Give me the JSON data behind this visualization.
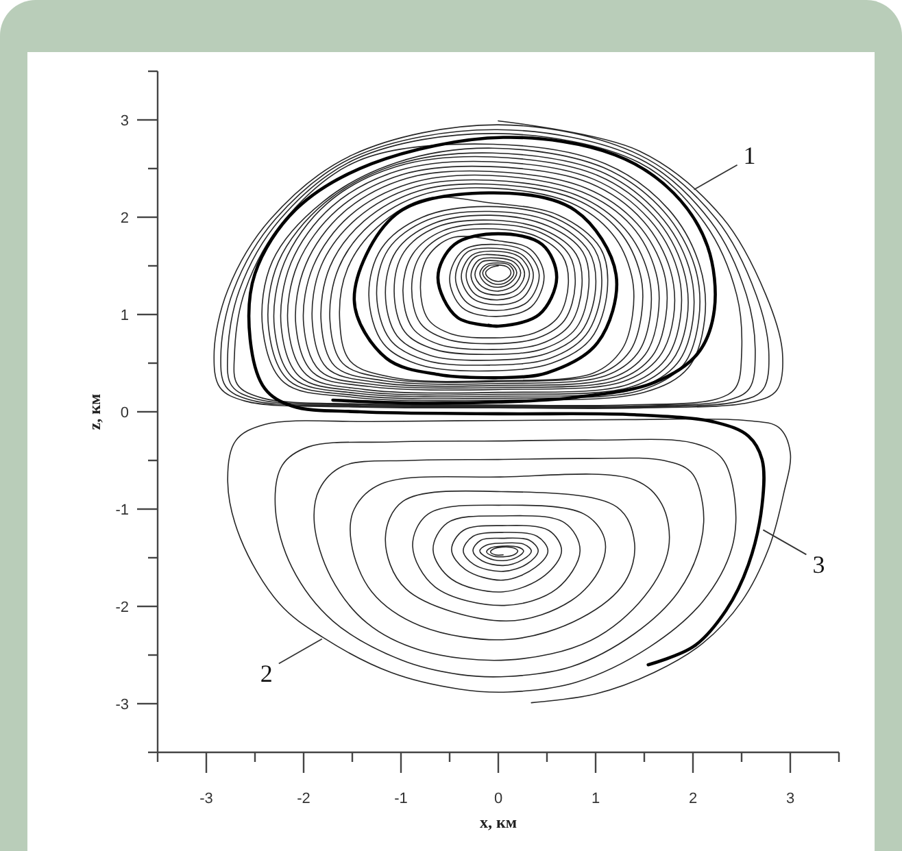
{
  "chart_data": {
    "type": "line",
    "xlabel": "x, км",
    "ylabel": "z, км",
    "xlim": [
      -3.5,
      3.5
    ],
    "ylim": [
      -3.5,
      3.5
    ],
    "xticks": [
      {
        "value": -3.5,
        "label": null
      },
      -3,
      {
        "value": -2.5,
        "label": null
      },
      -2,
      {
        "value": -1.5,
        "label": null
      },
      -1,
      {
        "value": -0.5,
        "label": null
      },
      0,
      {
        "value": 0.5,
        "label": null
      },
      1,
      {
        "value": 1.5,
        "label": null
      },
      2,
      {
        "value": 2.5,
        "label": null
      },
      3,
      {
        "value": 3.5,
        "label": null
      }
    ],
    "yticks": [
      {
        "value": -3.5,
        "label": null
      },
      -3,
      {
        "value": -2.5,
        "label": null
      },
      -2,
      {
        "value": -1.5,
        "label": null
      },
      -1,
      {
        "value": -0.5,
        "label": null
      },
      0,
      {
        "value": 0.5,
        "label": null
      },
      1,
      {
        "value": 1.5,
        "label": null
      },
      2,
      {
        "value": 2.5,
        "label": null
      },
      3,
      {
        "value": 3.5,
        "label": null
      }
    ],
    "series": [
      {
        "color": "#262626",
        "x": [
          0,
          1.45,
          2.3,
          2.75,
          2.92,
          2.86,
          2.6,
          1.5,
          0,
          -1.5,
          -2.6,
          -2.86,
          -2.92,
          -2.78,
          -2.34,
          -1.5,
          0,
          1.45,
          2.24,
          2.65,
          2.78,
          2.72,
          2.48,
          1.45,
          0,
          -1.45,
          -2.54,
          -2.8,
          -2.85,
          -2.72,
          -2.29,
          -1.48,
          -0.01,
          1.45,
          2.18,
          2.55,
          2.64,
          2.58,
          2.36,
          1.4,
          0,
          -1.4,
          -2.48,
          -2.74,
          -2.78,
          -2.66,
          -2.24,
          -1.46,
          -0.02,
          1.45,
          2.12,
          2.45,
          2.5,
          2.44,
          2.24,
          1.3,
          0,
          -1.4,
          -2.42,
          -2.68,
          -2.71,
          -2.6,
          -2.19,
          -1.44,
          -0.05,
          1.1,
          1.75,
          2.07,
          2.12,
          1.95,
          1.5,
          0,
          -1.5,
          -2.2,
          -2.42,
          -2.32,
          -1.8,
          -1.05,
          -0.06,
          1.08,
          1.7,
          2.02,
          2.06,
          1.9,
          1.46,
          0,
          -1.48,
          -2.15,
          -2.36,
          -2.26,
          -1.78,
          -1.05,
          -0.06,
          1.05,
          1.65,
          1.96,
          2.0,
          1.84,
          1.42,
          0,
          -1.45,
          -2.1,
          -2.3,
          -2.2,
          -1.76,
          -1.05,
          -0.07,
          1.02,
          1.6,
          1.9,
          1.94,
          1.78,
          1.38,
          0,
          -1.42,
          -2.04,
          -2.23,
          -2.13,
          -1.71,
          -1.02,
          -0.07,
          0.98,
          1.55,
          1.84,
          1.87,
          1.72,
          1.33,
          0,
          -1.38,
          -1.97,
          -2.16,
          -2.06,
          -1.65,
          -0.98,
          -0.08,
          0.94,
          1.49,
          1.77,
          1.8,
          1.65,
          1.28,
          0,
          -1.33,
          -1.9,
          -2.08,
          -1.98,
          -1.59,
          -0.94,
          -0.08,
          0.9,
          1.43,
          1.7,
          1.72,
          1.58,
          1.23,
          0,
          -1.28,
          -1.83,
          -2.0,
          -1.9,
          -1.52,
          -0.9,
          -0.09,
          0.86,
          1.37,
          1.62,
          1.64,
          1.51,
          1.17,
          0,
          -1.23,
          -1.76,
          -1.91,
          -1.82,
          -1.45,
          -0.86,
          -0.09,
          0.82,
          1.3,
          1.54,
          1.56,
          1.43,
          1.1,
          0,
          -1.18,
          -1.68,
          -1.82,
          -1.73,
          -1.38,
          -0.82,
          -0.1,
          0.78,
          1.24,
          1.46,
          1.47,
          1.35,
          1.04,
          -0.03,
          -1.13,
          -1.6,
          -1.73,
          -1.64,
          -1.31,
          -0.78,
          -0.1,
          0.74,
          1.17,
          1.37,
          1.38,
          1.27,
          0.98,
          -0.05,
          -1.07,
          -1.52,
          -1.63,
          -1.55,
          -1.24,
          -0.74,
          -0.1,
          0.62,
          1.05,
          1.12,
          0.95,
          0.55,
          -0.1,
          -0.8,
          -1.18,
          -1.33,
          -1.2,
          -0.78,
          -0.1,
          0.59,
          0.99,
          1.06,
          0.9,
          0.53,
          -0.09,
          -0.75,
          -1.11,
          -1.25,
          -1.13,
          -0.73,
          -0.09,
          0.55,
          0.93,
          1.0,
          0.85,
          0.5,
          -0.08,
          -0.7,
          -1.04,
          -1.16,
          -1.05,
          -0.68,
          -0.08,
          0.51,
          0.87,
          0.93,
          0.8,
          0.47,
          -0.07,
          -0.65,
          -0.96,
          -1.07,
          -0.97,
          -0.63,
          -0.07,
          0.47,
          0.8,
          0.86,
          0.74,
          0.44,
          -0.06,
          -0.6,
          -0.88,
          -0.98,
          -0.88,
          -0.57,
          -0.06,
          0.44,
          0.73,
          0.79,
          0.68,
          0.41,
          -0.05,
          -0.54,
          -0.8,
          -0.89,
          -0.8,
          -0.52,
          -0.05,
          0.4,
          0.66,
          0.72,
          0.62,
          0.37,
          -0.04,
          -0.48,
          -0.72,
          -0.8,
          -0.72,
          -0.47,
          -0.02,
          0.33,
          0.47,
          0.34,
          -0.02,
          -0.37,
          -0.5,
          -0.36,
          -0.02,
          0.29,
          0.42,
          0.3,
          -0.02,
          -0.32,
          -0.44,
          -0.32,
          -0.01,
          0.25,
          0.36,
          0.25,
          -0.01,
          -0.27,
          -0.38,
          -0.27,
          -0.01,
          0.22,
          0.32,
          0.22,
          -0.01,
          -0.24,
          -0.33,
          -0.24,
          0,
          0.19,
          0.27,
          0.19,
          0,
          -0.2,
          -0.28,
          -0.2,
          0,
          0.16,
          0.23,
          0.16,
          0,
          -0.17,
          -0.24,
          -0.17,
          0,
          0.13,
          0.19,
          0.13,
          0,
          -0.13,
          -0.19,
          -0.13,
          0,
          0.11,
          0.16,
          0.11,
          0,
          -0.11,
          -0.16,
          -0.1,
          0,
          0.09,
          0.13,
          0.09,
          0,
          -0.09,
          -0.13,
          -0.08,
          0
        ],
        "values": [
          2.99,
          2.68,
          2.0,
          1.2,
          0.6,
          0.22,
          0.1,
          0.04,
          0.04,
          0.05,
          0.11,
          0.25,
          0.6,
          1.25,
          1.98,
          2.64,
          2.95,
          2.64,
          1.98,
          1.2,
          0.6,
          0.23,
          0.11,
          0.05,
          0.05,
          0.06,
          0.12,
          0.26,
          0.6,
          1.25,
          1.98,
          2.62,
          2.9,
          2.6,
          1.96,
          1.2,
          0.6,
          0.24,
          0.12,
          0.06,
          0.06,
          0.07,
          0.13,
          0.27,
          0.6,
          1.25,
          1.98,
          2.6,
          2.86,
          2.56,
          1.94,
          1.2,
          0.6,
          0.25,
          0.13,
          0.07,
          0.07,
          0.08,
          0.14,
          0.28,
          0.6,
          1.25,
          1.98,
          2.58,
          2.75,
          2.55,
          2.08,
          1.5,
          0.95,
          0.45,
          0.2,
          0.12,
          0.15,
          0.3,
          0.85,
          1.55,
          2.16,
          2.56,
          2.71,
          2.51,
          2.06,
          1.49,
          0.95,
          0.48,
          0.22,
          0.14,
          0.17,
          0.32,
          0.86,
          1.54,
          2.15,
          2.54,
          2.66,
          2.47,
          2.03,
          1.48,
          0.95,
          0.5,
          0.24,
          0.16,
          0.19,
          0.34,
          0.86,
          1.53,
          2.14,
          2.52,
          2.62,
          2.43,
          2.01,
          1.47,
          0.96,
          0.52,
          0.26,
          0.18,
          0.21,
          0.36,
          0.87,
          1.53,
          2.11,
          2.48,
          2.57,
          2.39,
          1.98,
          1.46,
          0.96,
          0.54,
          0.28,
          0.2,
          0.23,
          0.38,
          0.88,
          1.52,
          2.08,
          2.44,
          2.52,
          2.35,
          1.96,
          1.45,
          0.97,
          0.56,
          0.31,
          0.23,
          0.26,
          0.4,
          0.89,
          1.51,
          2.05,
          2.4,
          2.47,
          2.3,
          1.93,
          1.44,
          0.97,
          0.57,
          0.33,
          0.25,
          0.28,
          0.42,
          0.9,
          1.5,
          2.02,
          2.35,
          2.43,
          2.26,
          1.91,
          1.43,
          0.98,
          0.59,
          0.35,
          0.27,
          0.3,
          0.45,
          0.91,
          1.5,
          1.99,
          2.31,
          2.38,
          2.22,
          1.88,
          1.42,
          0.98,
          0.6,
          0.37,
          0.29,
          0.32,
          0.47,
          0.92,
          1.49,
          1.96,
          2.27,
          2.34,
          2.19,
          1.86,
          1.41,
          0.99,
          0.62,
          0.39,
          0.31,
          0.34,
          0.5,
          0.94,
          1.48,
          1.93,
          2.23,
          2.3,
          2.15,
          1.83,
          1.4,
          1.0,
          0.64,
          0.4,
          0.32,
          0.35,
          0.52,
          0.95,
          1.47,
          1.9,
          2.19,
          2.15,
          2.02,
          1.68,
          1.25,
          0.75,
          0.5,
          0.42,
          0.48,
          0.7,
          1.2,
          1.68,
          2.0,
          2.11,
          1.99,
          1.67,
          1.26,
          0.79,
          0.55,
          0.48,
          0.53,
          0.74,
          1.21,
          1.67,
          1.97,
          2.06,
          1.95,
          1.65,
          1.27,
          0.82,
          0.6,
          0.53,
          0.58,
          0.78,
          1.22,
          1.65,
          1.93,
          2.02,
          1.91,
          1.64,
          1.29,
          0.86,
          0.65,
          0.59,
          0.64,
          0.82,
          1.24,
          1.64,
          1.9,
          1.97,
          1.87,
          1.62,
          1.3,
          0.9,
          0.7,
          0.64,
          0.69,
          0.86,
          1.25,
          1.62,
          1.86,
          1.93,
          1.84,
          1.61,
          1.31,
          0.94,
          0.76,
          0.7,
          0.75,
          0.91,
          1.27,
          1.61,
          1.83,
          1.88,
          1.8,
          1.6,
          1.32,
          0.98,
          0.81,
          0.76,
          0.8,
          0.95,
          1.28,
          1.6,
          1.79,
          1.76,
          1.67,
          1.4,
          1.08,
          0.98,
          1.07,
          1.37,
          1.66,
          1.72,
          1.64,
          1.41,
          1.13,
          1.04,
          1.12,
          1.38,
          1.64,
          1.68,
          1.61,
          1.41,
          1.17,
          1.1,
          1.17,
          1.39,
          1.61,
          1.65,
          1.59,
          1.42,
          1.22,
          1.15,
          1.21,
          1.4,
          1.59,
          1.61,
          1.56,
          1.42,
          1.26,
          1.2,
          1.25,
          1.4,
          1.56,
          1.58,
          1.54,
          1.43,
          1.3,
          1.24,
          1.29,
          1.41,
          1.54,
          1.55,
          1.52,
          1.43,
          1.33,
          1.28,
          1.32,
          1.42,
          1.51,
          1.53,
          1.51,
          1.43,
          1.35,
          1.31,
          1.35,
          1.43,
          1.5,
          1.51,
          1.49,
          1.43,
          1.37,
          1.34,
          1.37,
          1.43,
          1.48,
          1.5
        ]
      },
      {
        "color": "#262626",
        "x": [
          0.34,
          1.0,
          1.6,
          2.1,
          2.5,
          2.78,
          2.93,
          3.0,
          2.88,
          2.55,
          1.3,
          0,
          -1.3,
          -2.4,
          -2.7,
          -2.78,
          -2.65,
          -2.25,
          -1.8,
          -1.1,
          -0.4,
          0.1,
          0.8,
          1.55,
          2.1,
          2.4,
          2.43,
          2.3,
          2.0,
          1.0,
          0,
          -1.1,
          -1.95,
          -2.22,
          -2.29,
          -2.12,
          -1.7,
          -1.0,
          -0.4,
          0.1,
          0.75,
          1.4,
          1.85,
          2.08,
          2.1,
          1.98,
          1.7,
          0.9,
          0,
          -0.9,
          -1.6,
          -1.84,
          -1.89,
          -1.72,
          -1.35,
          -0.8,
          0.1,
          0.95,
          1.5,
          1.75,
          1.68,
          1.4,
          0.02,
          -1.2,
          -1.48,
          -1.51,
          -1.3,
          -0.8,
          0.1,
          0.85,
          1.3,
          1.4,
          1.22,
          0.03,
          -0.98,
          -1.16,
          -0.95,
          0.08,
          0.75,
          1.05,
          1.09,
          0.88,
          0.04,
          -0.72,
          -0.88,
          -0.65,
          0.06,
          0.6,
          0.84,
          0.68,
          0.04,
          -0.52,
          -0.67,
          -0.48,
          0.05,
          0.48,
          0.65,
          0.52,
          0.04,
          -0.36,
          -0.48,
          -0.34,
          0.05,
          0.38,
          0.51,
          0.4,
          0.04,
          -0.26,
          -0.36,
          -0.25,
          0.05,
          0.3,
          0.41,
          0.32,
          0.04,
          -0.18,
          -0.26,
          -0.17,
          0.05,
          0.25,
          0.34,
          0.26,
          0.04,
          -0.12,
          -0.19,
          -0.11,
          0.05,
          0.2,
          0.26,
          0.2,
          0.04,
          -0.08,
          -0.12,
          -0.06,
          0.05,
          0.16,
          0.2,
          0.16,
          0.04,
          -0.05,
          -0.08,
          -0.03,
          0.05
        ],
        "values": [
          -2.99,
          -2.9,
          -2.68,
          -2.38,
          -1.95,
          -1.4,
          -0.85,
          -0.42,
          -0.16,
          -0.09,
          -0.08,
          -0.09,
          -0.1,
          -0.13,
          -0.3,
          -0.72,
          -1.3,
          -1.97,
          -2.32,
          -2.68,
          -2.85,
          -2.88,
          -2.78,
          -2.42,
          -1.95,
          -1.4,
          -0.9,
          -0.48,
          -0.32,
          -0.29,
          -0.3,
          -0.31,
          -0.36,
          -0.55,
          -1.0,
          -1.6,
          -2.15,
          -2.55,
          -2.7,
          -2.72,
          -2.62,
          -2.28,
          -1.85,
          -1.35,
          -0.95,
          -0.62,
          -0.5,
          -0.48,
          -0.49,
          -0.5,
          -0.56,
          -0.8,
          -1.15,
          -1.7,
          -2.17,
          -2.45,
          -2.55,
          -2.35,
          -1.9,
          -1.4,
          -0.95,
          -0.7,
          -0.67,
          -0.74,
          -1.0,
          -1.35,
          -1.85,
          -2.2,
          -2.34,
          -2.12,
          -1.75,
          -1.35,
          -0.98,
          -0.82,
          -0.92,
          -1.3,
          -1.82,
          -2.15,
          -1.94,
          -1.6,
          -1.3,
          -1.05,
          -0.96,
          -1.05,
          -1.38,
          -1.8,
          -1.99,
          -1.82,
          -1.43,
          -1.14,
          -1.07,
          -1.14,
          -1.42,
          -1.72,
          -1.85,
          -1.68,
          -1.43,
          -1.22,
          -1.17,
          -1.22,
          -1.42,
          -1.62,
          -1.73,
          -1.6,
          -1.43,
          -1.28,
          -1.24,
          -1.28,
          -1.43,
          -1.57,
          -1.64,
          -1.56,
          -1.43,
          -1.32,
          -1.3,
          -1.32,
          -1.43,
          -1.53,
          -1.58,
          -1.52,
          -1.43,
          -1.36,
          -1.35,
          -1.37,
          -1.43,
          -1.5,
          -1.53,
          -1.49,
          -1.43,
          -1.39,
          -1.38,
          -1.4,
          -1.44,
          -1.48,
          -1.49,
          -1.47,
          -1.43,
          -1.4,
          -1.39,
          -1.41,
          -1.44,
          -1.47,
          -1.47
        ]
      },
      {
        "color": "#000000",
        "x": [
          1.54,
          2.01,
          2.34,
          2.57,
          2.71,
          2.71,
          2.57,
          2.24,
          1.4,
          0,
          -1.42,
          -2.12,
          -2.4,
          -2.55,
          -2.5,
          -2.08,
          -1.3,
          0.05,
          1.2,
          1.8,
          2.15,
          2.22,
          2.05,
          1.6,
          0.8,
          0,
          -0.9,
          -1.7
        ],
        "values": [
          -2.6,
          -2.41,
          -2.04,
          -1.57,
          -0.96,
          -0.49,
          -0.25,
          -0.11,
          -0.03,
          -0.02,
          0,
          0.06,
          0.24,
          0.75,
          1.42,
          2.08,
          2.55,
          2.82,
          2.64,
          2.25,
          1.7,
          1.05,
          0.6,
          0.3,
          0.15,
          0.1,
          0.09,
          0.12
        ]
      },
      {
        "color": "#000000",
        "x": [
          0,
          -0.6,
          -1.15,
          -1.48,
          -1.05,
          -0.1,
          0.79,
          1.21,
          1.02,
          0.5,
          0,
          -0.12
        ],
        "values": [
          0.35,
          0.38,
          0.55,
          1.15,
          2.03,
          2.25,
          2.07,
          1.41,
          0.71,
          0.4,
          0.35,
          0.35
        ]
      },
      {
        "color": "#000000",
        "x": [
          0,
          -0.42,
          -0.62,
          -0.45,
          0,
          0.45,
          0.6,
          0.42,
          0,
          -0.1
        ],
        "values": [
          0.88,
          0.97,
          1.38,
          1.72,
          1.83,
          1.72,
          1.38,
          1.0,
          0.88,
          0.89
        ]
      }
    ],
    "annotations": [
      {
        "text": "1",
        "x": 1.99,
        "y": 2.27
      },
      {
        "text": "2",
        "x": -1.79,
        "y": -2.32
      },
      {
        "text": "3",
        "x": 2.7,
        "y": -1.2
      }
    ]
  }
}
